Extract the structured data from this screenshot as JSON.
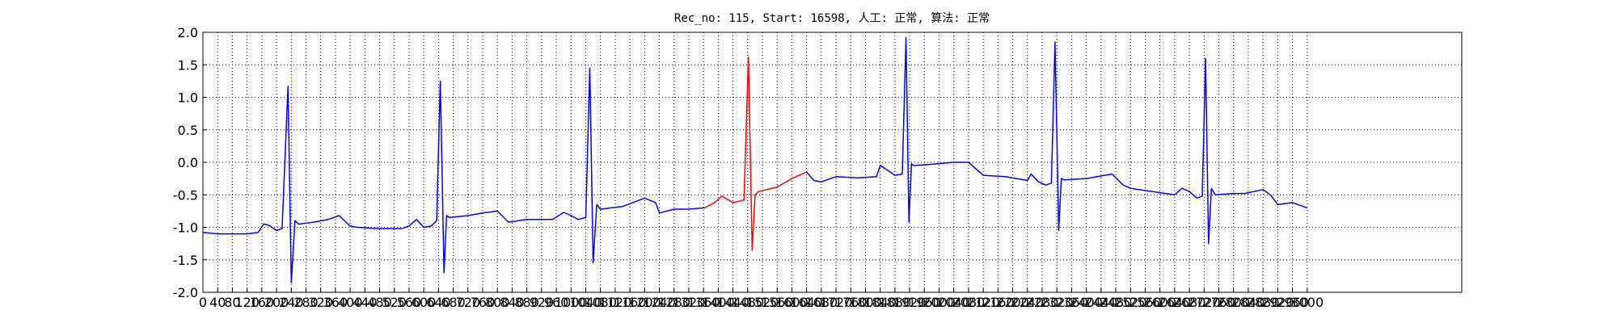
{
  "chart_data": {
    "type": "line",
    "title": "Rec_no: 115, Start: 16598, 人工: 正常, 算法: 正常",
    "xlim": [
      0,
      3420
    ],
    "ylim": [
      -2.0,
      2.0
    ],
    "xticks": [
      0,
      40,
      80,
      120,
      160,
      200,
      240,
      280,
      320,
      360,
      400,
      440,
      480,
      520,
      560,
      600,
      640,
      680,
      720,
      760,
      800,
      840,
      880,
      920,
      960,
      1000,
      1040,
      1080,
      1120,
      1160,
      1200,
      1240,
      1280,
      1320,
      1360,
      1400,
      1440,
      1480,
      1520,
      1560,
      1600,
      1640,
      1680,
      1720,
      1760,
      1800,
      1840,
      1880,
      1920,
      1960,
      2000,
      2040,
      2080,
      2120,
      2160,
      2200,
      2240,
      2280,
      2320,
      2360,
      2400,
      2440,
      2480,
      2520,
      2560,
      2600,
      2640,
      2680,
      2720,
      2760,
      2800,
      2840,
      2880,
      2920,
      2960,
      3000
    ],
    "yticks": [
      {
        "value": -2.0,
        "label": "-2.0"
      },
      {
        "value": -1.5,
        "label": "-1.5"
      },
      {
        "value": -1.0,
        "label": "-1.0"
      },
      {
        "value": -0.5,
        "label": "-0.5"
      },
      {
        "value": 0.0,
        "label": "0.0"
      },
      {
        "value": 0.5,
        "label": "0.5"
      },
      {
        "value": 1.0,
        "label": "1.0"
      },
      {
        "value": 1.5,
        "label": "1.5"
      },
      {
        "value": 2.0,
        "label": "2.0"
      }
    ],
    "grid": true,
    "series": [
      {
        "color": "#0000ff",
        "x": [
          0,
          40,
          80,
          120,
          150,
          165,
          180,
          200,
          215,
          231,
          240,
          250,
          260,
          300,
          340,
          370,
          400,
          420,
          480,
          540,
          560,
          580,
          600,
          620,
          635,
          645,
          655,
          662,
          670,
          720,
          760,
          800,
          830,
          880,
          950,
          980,
          1000,
          1020,
          1040,
          1051,
          1060,
          1070,
          1080,
          1140,
          1200,
          1230,
          1240,
          1280,
          1320,
          1363
        ],
        "values": [
          -1.08,
          -1.1,
          -1.1,
          -1.1,
          -1.08,
          -0.95,
          -0.97,
          -1.05,
          -1.02,
          1.17,
          -1.85,
          -0.9,
          -0.95,
          -0.92,
          -0.88,
          -0.82,
          -0.98,
          -1.0,
          -1.02,
          -1.02,
          -0.98,
          -0.88,
          -1.0,
          -0.98,
          -0.9,
          1.25,
          -1.7,
          -0.82,
          -0.85,
          -0.82,
          -0.78,
          -0.75,
          -0.92,
          -0.88,
          -0.88,
          -0.77,
          -0.82,
          -0.88,
          -0.85,
          1.45,
          -1.55,
          -0.65,
          -0.72,
          -0.68,
          -0.55,
          -0.62,
          -0.78,
          -0.72,
          -0.72,
          -0.7
        ]
      },
      {
        "color": "#ff0000",
        "x": [
          1363,
          1390,
          1410,
          1440,
          1470,
          1482,
          1492,
          1500,
          1510,
          1560,
          1600,
          1640
        ],
        "values": [
          -0.7,
          -0.62,
          -0.52,
          -0.62,
          -0.58,
          1.62,
          -1.35,
          -0.5,
          -0.45,
          -0.38,
          -0.25,
          -0.15
        ]
      },
      {
        "color": "#0000ff",
        "x": [
          1640,
          1660,
          1680,
          1720,
          1780,
          1830,
          1840,
          1860,
          1880,
          1900,
          1910,
          1918,
          1925,
          1930,
          1980,
          2040,
          2080,
          2120,
          2180,
          2240,
          2250,
          2270,
          2290,
          2305,
          2315,
          2325,
          2332,
          2340,
          2400,
          2450,
          2470,
          2500,
          2520,
          2580,
          2640,
          2660,
          2680,
          2700,
          2715,
          2724,
          2732,
          2740,
          2750,
          2800,
          2830,
          2880,
          2900,
          2920,
          2960,
          3000
        ],
        "values": [
          -0.15,
          -0.28,
          -0.3,
          -0.22,
          -0.24,
          -0.22,
          -0.05,
          -0.12,
          -0.2,
          -0.18,
          1.92,
          -0.92,
          -0.02,
          -0.05,
          -0.03,
          0.0,
          0.0,
          -0.2,
          -0.22,
          -0.28,
          -0.18,
          -0.3,
          -0.35,
          -0.32,
          1.85,
          -1.05,
          -0.25,
          -0.27,
          -0.25,
          -0.2,
          -0.18,
          -0.35,
          -0.4,
          -0.45,
          -0.5,
          -0.4,
          -0.45,
          -0.55,
          -0.52,
          1.6,
          -1.25,
          -0.4,
          -0.5,
          -0.48,
          -0.48,
          -0.42,
          -0.5,
          -0.65,
          -0.62,
          -0.7
        ]
      }
    ]
  }
}
